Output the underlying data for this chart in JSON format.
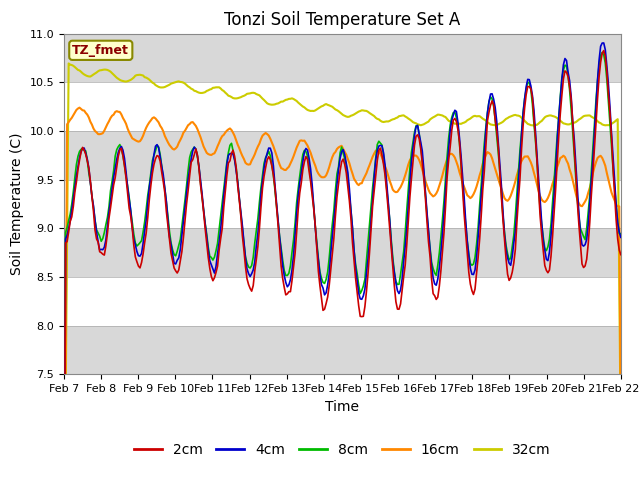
{
  "title": "Tonzi Soil Temperature Set A",
  "xlabel": "Time",
  "ylabel": "Soil Temperature (C)",
  "ylim": [
    7.5,
    11.0
  ],
  "yticks": [
    7.5,
    8.0,
    8.5,
    9.0,
    9.5,
    10.0,
    10.5,
    11.0
  ],
  "xtick_labels": [
    "Feb 7",
    "Feb 8",
    "Feb 9",
    "Feb 10",
    "Feb 11",
    "Feb 12",
    "Feb 13",
    "Feb 14",
    "Feb 15",
    "Feb 16",
    "Feb 17",
    "Feb 18",
    "Feb 19",
    "Feb 20",
    "Feb 21",
    "Feb 22"
  ],
  "label_text": "TZ_fmet",
  "colors": {
    "2cm": "#cc0000",
    "4cm": "#0000cc",
    "8cm": "#00bb00",
    "16cm": "#ff8800",
    "32cm": "#cccc00"
  },
  "bg_color": "#ffffff",
  "plot_bg": "#d8d8d8",
  "band_color": "#ffffff",
  "title_fontsize": 12,
  "axis_label_fontsize": 10,
  "tick_fontsize": 8,
  "legend_fontsize": 10
}
